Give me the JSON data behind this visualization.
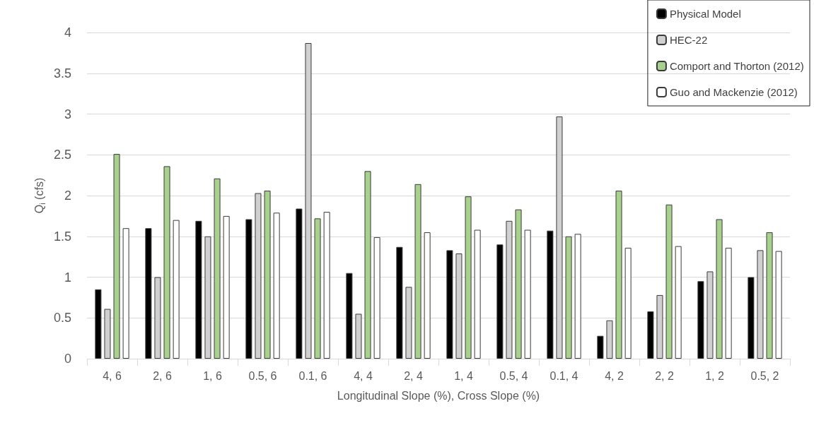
{
  "chart_data": {
    "type": "bar",
    "xlabel": "Longitudinal Slope (%), Cross Slope (%)",
    "ylabel": "Q$_{i}$ (cfs)",
    "categories": [
      "4, 6",
      "2, 6",
      "1, 6",
      "0.5, 6",
      "0.1, 6",
      "4, 4",
      "2, 4",
      "1, 4",
      "0.5, 4",
      "0.1, 4",
      "4, 2",
      "2, 2",
      "1, 2",
      "0.5, 2"
    ],
    "series": [
      {
        "name": "Physical Model",
        "color": "#000000",
        "values": [
          0.85,
          1.6,
          1.69,
          1.71,
          1.84,
          1.05,
          1.37,
          1.33,
          1.4,
          1.57,
          0.28,
          0.58,
          0.95,
          1.0
        ]
      },
      {
        "name": "HEC-22",
        "color": "#d0d0d0",
        "values": [
          0.61,
          1.0,
          1.5,
          2.03,
          3.87,
          0.55,
          0.88,
          1.29,
          1.69,
          2.97,
          0.47,
          0.78,
          1.07,
          1.33
        ]
      },
      {
        "name": "Comport and Thorton (2012)",
        "color": "#a9d18e",
        "values": [
          2.51,
          2.36,
          2.21,
          2.06,
          1.72,
          2.3,
          2.14,
          1.99,
          1.83,
          1.5,
          2.06,
          1.89,
          1.71,
          1.55
        ]
      },
      {
        "name": "Guo and Mackenzie (2012)",
        "color": "#ffffff",
        "values": [
          1.6,
          1.7,
          1.75,
          1.79,
          1.8,
          1.49,
          1.55,
          1.58,
          1.58,
          1.53,
          1.36,
          1.38,
          1.36,
          1.32
        ]
      }
    ],
    "ylim": [
      0,
      4
    ],
    "yticks": [
      0,
      0.5,
      1,
      1.5,
      2,
      2.5,
      3,
      3.5,
      4
    ],
    "grid": "y",
    "legend": "top right"
  }
}
